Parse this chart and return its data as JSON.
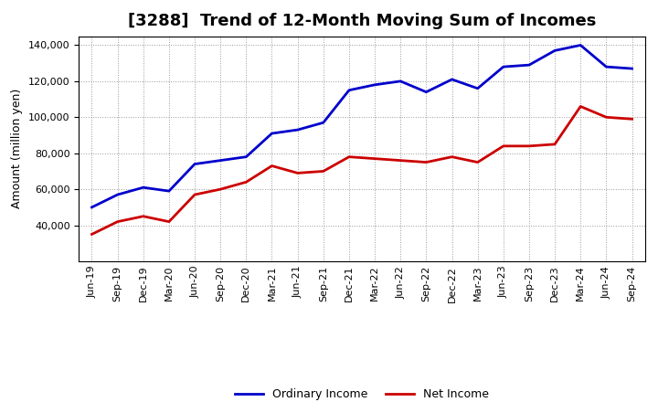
{
  "title": "[3288]  Trend of 12-Month Moving Sum of Incomes",
  "ylabel": "Amount (million yen)",
  "background_color": "#ffffff",
  "plot_bg_color": "#f0f0f0",
  "grid_color": "#999999",
  "ordinary_income_color": "#0000cc",
  "net_income_color": "#cc0000",
  "ordinary_income_label": "Ordinary Income",
  "net_income_label": "Net Income",
  "x_labels": [
    "Jun-19",
    "Sep-19",
    "Dec-19",
    "Mar-20",
    "Jun-20",
    "Sep-20",
    "Dec-20",
    "Mar-21",
    "Jun-21",
    "Sep-21",
    "Dec-21",
    "Mar-22",
    "Jun-22",
    "Sep-22",
    "Dec-22",
    "Mar-23",
    "Jun-23",
    "Sep-23",
    "Dec-23",
    "Mar-24",
    "Jun-24",
    "Sep-24"
  ],
  "ordinary_income": [
    50000,
    57000,
    61000,
    59000,
    74000,
    76000,
    78000,
    91000,
    93000,
    97000,
    115000,
    118000,
    120000,
    114000,
    121000,
    116000,
    128000,
    129000,
    137000,
    140000,
    128000,
    127000
  ],
  "net_income": [
    35000,
    42000,
    45000,
    42000,
    57000,
    60000,
    64000,
    73000,
    69000,
    70000,
    78000,
    77000,
    76000,
    75000,
    78000,
    75000,
    84000,
    84000,
    85000,
    106000,
    100000,
    99000
  ],
  "ylim": [
    20000,
    145000
  ],
  "yticks": [
    40000,
    60000,
    80000,
    100000,
    120000,
    140000
  ],
  "line_width": 2.0,
  "title_fontsize": 13,
  "axis_label_fontsize": 9,
  "tick_fontsize": 8,
  "legend_fontsize": 9
}
